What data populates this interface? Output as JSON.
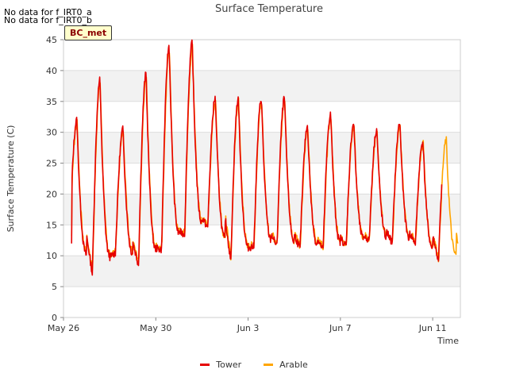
{
  "no_data": [
    "No data for f_IRT0_a",
    "No data for f_IRT0_b"
  ],
  "badge": "BC_met",
  "colors": {
    "tower": "#e60000",
    "arable": "#ffa500"
  },
  "chart_data": {
    "type": "line",
    "title": "Surface Temperature",
    "xlabel": "Time",
    "ylabel": "Surface Temperature (C)",
    "xlim": [
      0,
      17.2
    ],
    "ylim": [
      0,
      45
    ],
    "yticks": [
      0,
      5,
      10,
      15,
      20,
      25,
      30,
      35,
      40,
      45
    ],
    "xticks": [
      {
        "pos": 0,
        "label": "May 26"
      },
      {
        "pos": 4,
        "label": "May 30"
      },
      {
        "pos": 8,
        "label": "Jun 3"
      },
      {
        "pos": 12,
        "label": "Jun 7"
      },
      {
        "pos": 16,
        "label": "Jun 11"
      }
    ],
    "legend": [
      "Tower",
      "Arable"
    ],
    "daily_cycle": [
      {
        "min": 11.5,
        "max": 32.0
      },
      {
        "min": 7.0,
        "max": 38.5
      },
      {
        "min": 10.5,
        "max": 30.5
      },
      {
        "min": 8.5,
        "max": 39.5
      },
      {
        "min": 11.0,
        "max": 44.0
      },
      {
        "min": 13.5,
        "max": 44.5
      },
      {
        "min": 14.5,
        "max": 35.5
      },
      {
        "min": 9.0,
        "max": 35.5
      },
      {
        "min": 11.5,
        "max": 35.5
      },
      {
        "min": 11.5,
        "max": 35.5
      },
      {
        "min": 11.0,
        "max": 31.0
      },
      {
        "min": 11.0,
        "max": 33.0
      },
      {
        "min": 11.5,
        "max": 31.5
      },
      {
        "min": 12.5,
        "max": 30.5
      },
      {
        "min": 12.0,
        "max": 31.5
      },
      {
        "min": 12.0,
        "max": 28.5
      },
      {
        "min": 9.0,
        "max": 29.0
      }
    ],
    "series": [
      {
        "name": "Tower",
        "start": 0.35,
        "end": 16.4,
        "start_value": 12.0
      },
      {
        "name": "Arable",
        "start": 0.35,
        "end": 17.1,
        "start_value": 13.2,
        "end_value": 12.0
      }
    ]
  }
}
